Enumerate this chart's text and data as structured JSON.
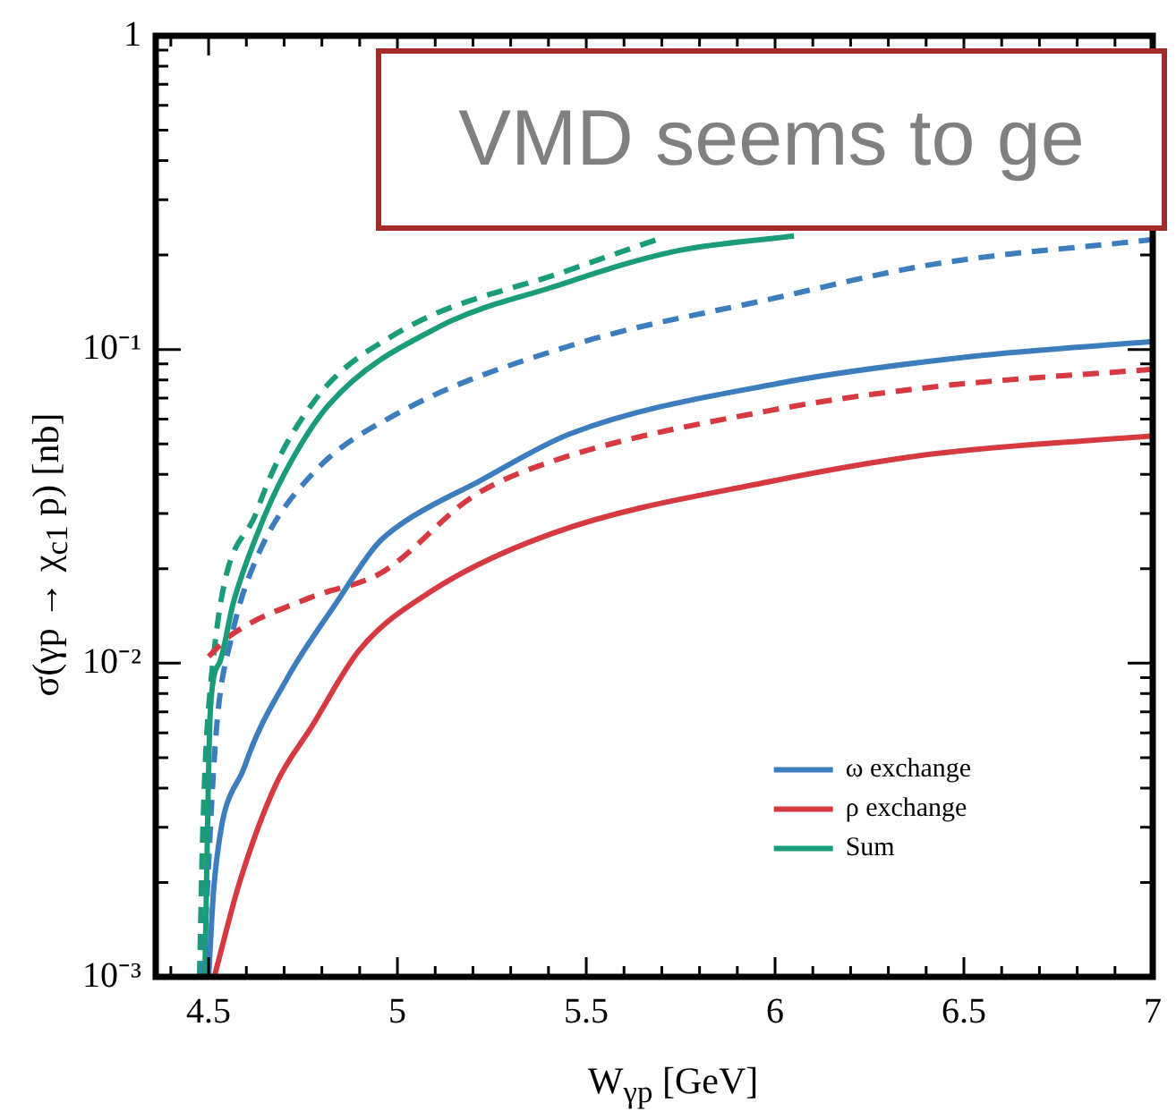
{
  "chart_data": {
    "type": "line",
    "xlabel": "W$_{γp}$  [GeV]",
    "ylabel": "σ(γp → χ$_{c1}$ p)  [nb]",
    "log": "y",
    "legend": "bottom right",
    "grid": false,
    "line_style": "solid",
    "marker": "none",
    "xlim": [
      4.36,
      7
    ],
    "xticks": [
      {
        "value": 4.4,
        "label": null
      },
      4.5,
      {
        "value": 4.6,
        "label": null
      },
      {
        "value": 4.7,
        "label": null
      },
      {
        "value": 4.8,
        "label": null
      },
      {
        "value": 4.9,
        "label": null
      },
      5,
      {
        "value": 5.1,
        "label": null
      },
      {
        "value": 5.2,
        "label": null
      },
      {
        "value": 5.3,
        "label": null
      },
      {
        "value": 5.4,
        "label": null
      },
      5.5,
      {
        "value": 5.6,
        "label": null
      },
      {
        "value": 5.7,
        "label": null
      },
      {
        "value": 5.8,
        "label": null
      },
      {
        "value": 5.9,
        "label": null
      },
      6,
      {
        "value": 6.1,
        "label": null
      },
      {
        "value": 6.2,
        "label": null
      },
      {
        "value": 6.3,
        "label": null
      },
      {
        "value": 6.4,
        "label": null
      },
      6.5,
      {
        "value": 6.6,
        "label": null
      },
      {
        "value": 6.7,
        "label": null
      },
      {
        "value": 6.8,
        "label": null
      },
      {
        "value": 6.9,
        "label": null
      },
      7
    ],
    "ylim": [
      0.001,
      1
    ],
    "yticks": [
      {
        "value": 0.001,
        "label": "10⁻³"
      },
      {
        "value": 0.002,
        "label": null
      },
      {
        "value": 0.003,
        "label": null
      },
      {
        "value": 0.004,
        "label": null
      },
      {
        "value": 0.005,
        "label": null
      },
      {
        "value": 0.006,
        "label": null
      },
      {
        "value": 0.007,
        "label": null
      },
      {
        "value": 0.008,
        "label": null
      },
      {
        "value": 0.009,
        "label": null
      },
      {
        "value": 0.01,
        "label": "10⁻²"
      },
      {
        "value": 0.02,
        "label": null
      },
      {
        "value": 0.03,
        "label": null
      },
      {
        "value": 0.04,
        "label": null
      },
      {
        "value": 0.05,
        "label": null
      },
      {
        "value": 0.06,
        "label": null
      },
      {
        "value": 0.07,
        "label": null
      },
      {
        "value": 0.08,
        "label": null
      },
      {
        "value": 0.09,
        "label": null
      },
      {
        "value": 0.1,
        "label": "10⁻¹"
      },
      {
        "value": 0.2,
        "label": null
      },
      {
        "value": 0.3,
        "label": null
      },
      {
        "value": 0.4,
        "label": null
      },
      {
        "value": 0.5,
        "label": null
      },
      {
        "value": 0.6,
        "label": null
      },
      {
        "value": 0.7,
        "label": null
      },
      {
        "value": 0.8,
        "label": null
      },
      {
        "value": 0.9,
        "label": null
      },
      1
    ],
    "annotations": [
      "VMD seems to ge"
    ],
    "series": [
      {
        "name": "ω exchange",
        "color": "#3b7dbd",
        "x": [
          4.5,
          4.515,
          4.596,
          4.707,
          4.837,
          4.947,
          5.014,
          5.216,
          5.46,
          6.01,
          6.52,
          7.0
        ],
        "values": [
          0.001,
          0.002,
          0.0047,
          0.0089,
          0.0155,
          0.024,
          0.028,
          0.038,
          0.054,
          0.078,
          0.095,
          0.106
        ]
      },
      {
        "name": "ρ exchange",
        "color": "#d6393f",
        "x": [
          4.515,
          4.582,
          4.678,
          4.774,
          4.899,
          5.091,
          5.413,
          5.99,
          6.42,
          7.0
        ],
        "values": [
          0.001,
          0.002,
          0.0041,
          0.0063,
          0.011,
          0.017,
          0.026,
          0.038,
          0.0465,
          0.053
        ]
      },
      {
        "name": "Sum",
        "color": "#1a9c7a",
        "x": [
          4.49,
          4.505,
          4.53,
          4.565,
          4.63,
          4.7,
          4.82,
          5.11,
          5.41,
          5.73,
          6.05
        ],
        "values": [
          0.001,
          0.0072,
          0.0101,
          0.0155,
          0.026,
          0.04,
          0.067,
          0.118,
          0.158,
          0.205,
          0.23
        ]
      },
      {
        "color": "#3b7dbd",
        "line_style": "dashed",
        "x": [
          4.485,
          4.52,
          4.56,
          4.63,
          4.774,
          4.995,
          5.46,
          5.99,
          6.42,
          7.0
        ],
        "values": [
          0.001,
          0.006,
          0.012,
          0.022,
          0.04,
          0.062,
          0.103,
          0.145,
          0.187,
          0.224
        ]
      },
      {
        "color": "#d6393f",
        "line_style": "dashed",
        "x": [
          4.5,
          4.56,
          4.77,
          4.96,
          5.2,
          5.41,
          5.99,
          6.42,
          7.0
        ],
        "values": [
          0.0105,
          0.0123,
          0.0162,
          0.0195,
          0.034,
          0.044,
          0.064,
          0.076,
          0.0865
        ]
      },
      {
        "color": "#1a9c7a",
        "line_style": "dashed",
        "x": [
          4.476,
          4.485,
          4.5,
          4.63,
          4.774,
          4.995,
          5.46,
          5.7
        ],
        "values": [
          0.001,
          0.003,
          0.0072,
          0.031,
          0.067,
          0.112,
          0.18,
          0.227
        ]
      }
    ]
  }
}
